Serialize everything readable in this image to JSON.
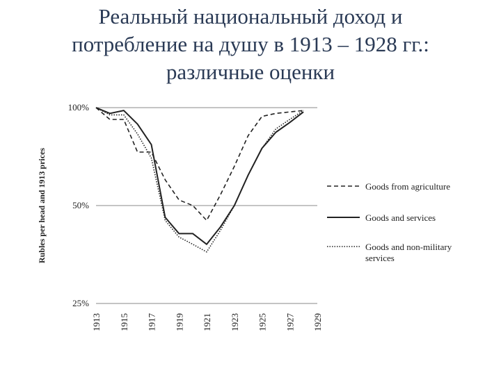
{
  "title_lines": [
    "Реальный национальный доход и",
    "потребление на душу в 1913 – 1928 гг.:",
    "различные оценки"
  ],
  "chart_data": {
    "type": "line",
    "title": "Реальный национальный доход и потребление на душу в 1913 – 1928 гг.: различные оценки",
    "ylabel": "Rubles per head and 1913 prices",
    "xlabel": "",
    "y_scale": "log",
    "ylim": [
      25,
      100
    ],
    "xlim": [
      1913,
      1929
    ],
    "y_ticks": [
      {
        "value": 100,
        "label": "100%"
      },
      {
        "value": 50,
        "label": "50%"
      },
      {
        "value": 25,
        "label": "25%"
      }
    ],
    "x_ticks": [
      "1913",
      "1915",
      "1917",
      "1919",
      "1921",
      "1923",
      "1925",
      "1927",
      "1929"
    ],
    "grid": "horizontal",
    "legend_position": "right",
    "series": [
      {
        "name": "Goods from agriculture",
        "style": "dashed",
        "color": "#222222",
        "x": [
          1913,
          1914,
          1915,
          1916,
          1917,
          1918,
          1919,
          1920,
          1921,
          1922,
          1923,
          1924,
          1925,
          1926,
          1927,
          1928
        ],
        "y": [
          100,
          92,
          92,
          73,
          73,
          60,
          52,
          50,
          45,
          54,
          66,
          82,
          94,
          96,
          97,
          98
        ]
      },
      {
        "name": "Goods and services",
        "style": "solid",
        "color": "#222222",
        "x": [
          1913,
          1914,
          1915,
          1916,
          1917,
          1918,
          1919,
          1920,
          1921,
          1922,
          1923,
          1924,
          1925,
          1926,
          1927,
          1928
        ],
        "y": [
          100,
          96,
          98,
          89,
          77,
          46,
          41,
          41,
          38,
          43,
          50,
          62,
          75,
          84,
          90,
          97
        ]
      },
      {
        "name": "Goods and non-military services",
        "style": "dotted",
        "color": "#222222",
        "x": [
          1913,
          1914,
          1915,
          1916,
          1917,
          1918,
          1919,
          1920,
          1921,
          1922,
          1923,
          1924,
          1925,
          1926,
          1927,
          1928
        ],
        "y": [
          100,
          95,
          95,
          83,
          70,
          45,
          40,
          38,
          36,
          42,
          50,
          62,
          75,
          86,
          92,
          98
        ]
      }
    ]
  }
}
